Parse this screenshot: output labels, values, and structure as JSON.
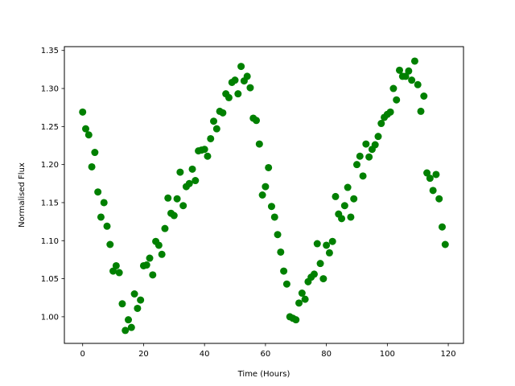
{
  "chart_data": {
    "type": "scatter",
    "title": "",
    "xlabel": "Time (Hours)",
    "ylabel": "Normalised Flux",
    "xlim": [
      -6,
      125
    ],
    "ylim": [
      0.965,
      1.355
    ],
    "xticks": [
      0,
      20,
      40,
      60,
      80,
      100,
      120
    ],
    "xtick_labels": [
      "0",
      "20",
      "40",
      "60",
      "80",
      "100",
      "120"
    ],
    "yticks": [
      1.0,
      1.05,
      1.1,
      1.15,
      1.2,
      1.25,
      1.3,
      1.35
    ],
    "ytick_labels": [
      "1.00",
      "1.05",
      "1.10",
      "1.15",
      "1.20",
      "1.25",
      "1.30",
      "1.35"
    ],
    "grid": false,
    "marker_color": "#008000",
    "series": [
      {
        "x": [
          0,
          1,
          2,
          3,
          4,
          5,
          6,
          7,
          8,
          9,
          10,
          11,
          12,
          13,
          14,
          15,
          16,
          17,
          18,
          19,
          20,
          21,
          22,
          23,
          24,
          25,
          26,
          27,
          28,
          29,
          30,
          31,
          32,
          33,
          34,
          35,
          36,
          37,
          38,
          39,
          40,
          41,
          42,
          43,
          44,
          45,
          46,
          47,
          48,
          49,
          50,
          51,
          52,
          53,
          54,
          55,
          56,
          57,
          58,
          59,
          60,
          61,
          62,
          63,
          64,
          65,
          66,
          67,
          68,
          69,
          70,
          71,
          72,
          73,
          74,
          75,
          76,
          77,
          78,
          79,
          80,
          81,
          82,
          83,
          84,
          85,
          86,
          87,
          88,
          89,
          90,
          91,
          92,
          93,
          94,
          95,
          96,
          97,
          98,
          99,
          100,
          101,
          102,
          103,
          104,
          105,
          106,
          107,
          108,
          109,
          110,
          111,
          112,
          113,
          114,
          115,
          116,
          117,
          118,
          119
        ],
        "y": [
          1.269,
          1.247,
          1.239,
          1.197,
          1.216,
          1.164,
          1.131,
          1.15,
          1.119,
          1.095,
          1.06,
          1.067,
          1.058,
          1.017,
          0.982,
          0.996,
          0.986,
          1.03,
          1.011,
          1.022,
          1.067,
          1.068,
          1.077,
          1.055,
          1.099,
          1.094,
          1.082,
          1.116,
          1.156,
          1.136,
          1.133,
          1.155,
          1.19,
          1.146,
          1.171,
          1.175,
          1.194,
          1.179,
          1.218,
          1.219,
          1.22,
          1.211,
          1.234,
          1.257,
          1.247,
          1.27,
          1.268,
          1.293,
          1.288,
          1.308,
          1.311,
          1.293,
          1.329,
          1.31,
          1.316,
          1.301,
          1.261,
          1.258,
          1.227,
          1.16,
          1.171,
          1.196,
          1.145,
          1.131,
          1.108,
          1.085,
          1.06,
          1.043,
          1.0,
          0.998,
          0.996,
          1.018,
          1.031,
          1.023,
          1.046,
          1.052,
          1.056,
          1.096,
          1.07,
          1.05,
          1.094,
          1.084,
          1.099,
          1.158,
          1.135,
          1.129,
          1.146,
          1.17,
          1.131,
          1.155,
          1.2,
          1.211,
          1.185,
          1.227,
          1.21,
          1.22,
          1.226,
          1.237,
          1.254,
          1.262,
          1.266,
          1.269,
          1.3,
          1.285,
          1.324,
          1.316,
          1.316,
          1.323,
          1.311,
          1.336,
          1.305,
          1.27,
          1.29,
          1.189,
          1.182,
          1.166,
          1.187,
          1.155,
          1.118,
          1.095
        ]
      }
    ]
  }
}
